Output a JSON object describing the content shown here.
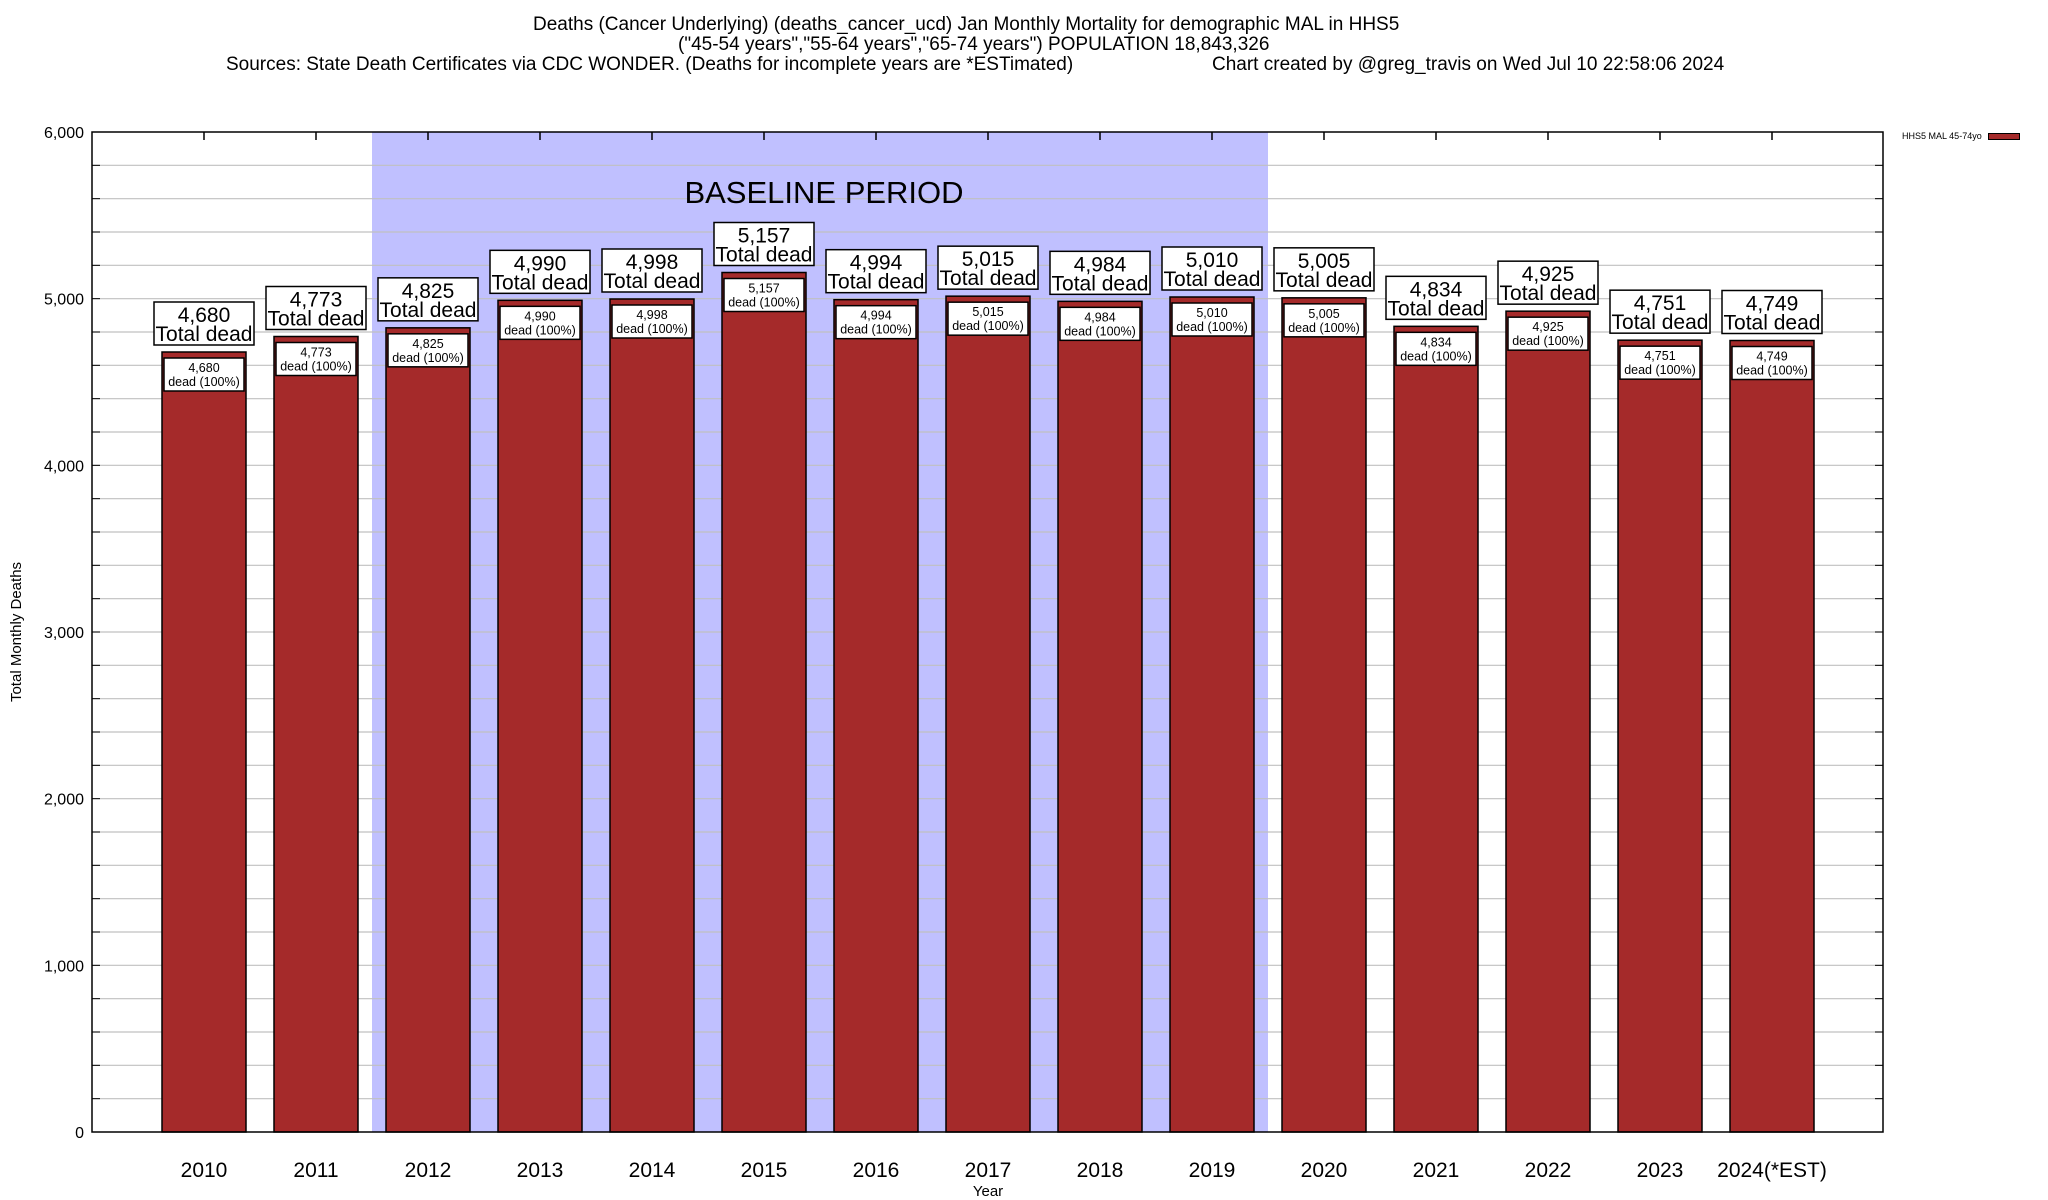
{
  "header": {
    "line1": "Deaths (Cancer Underlying) (deaths_cancer_ucd) Jan Monthly Mortality for demographic MAL in HHS5",
    "line2": "(\"45-54 years\",\"55-64 years\",\"65-74 years\") POPULATION 18,843,326",
    "line3_left": "Sources: State Death Certificates via CDC WONDER. (Deaths for incomplete years are *ESTimated)",
    "line3_right": "Chart created by @greg_travis on Wed Jul 10 22:58:06 2024"
  },
  "legend": {
    "label": "HHS5 MAL 45-74yo",
    "color": "#a52a2a"
  },
  "chart_data": {
    "type": "bar",
    "title": "Deaths (Cancer Underlying) (deaths_cancer_ucd) Jan Monthly Mortality for demographic MAL in HHS5",
    "xlabel": "Year",
    "ylabel": "Total Monthly Deaths",
    "ylim": [
      0,
      6000
    ],
    "yticks": [
      0,
      1000,
      2000,
      3000,
      4000,
      5000,
      6000
    ],
    "ytick_labels": [
      "0",
      "1,000",
      "2,000",
      "3,000",
      "4,000",
      "5,000",
      "6,000"
    ],
    "minor_grid_step": 200,
    "grid": true,
    "legend_position": "top-right",
    "categories": [
      "2010",
      "2011",
      "2012",
      "2013",
      "2014",
      "2015",
      "2016",
      "2017",
      "2018",
      "2019",
      "2020",
      "2021",
      "2022",
      "2023",
      "2024(*EST)"
    ],
    "series": [
      {
        "name": "HHS5 MAL 45-74yo",
        "color": "#a52a2a",
        "values": [
          4680,
          4773,
          4825,
          4990,
          4998,
          5157,
          4994,
          5015,
          4984,
          5010,
          5005,
          4834,
          4925,
          4751,
          4749
        ]
      }
    ],
    "total_labels": [
      "4,680",
      "4,773",
      "4,825",
      "4,990",
      "4,998",
      "5,157",
      "4,994",
      "5,015",
      "4,984",
      "5,010",
      "5,005",
      "4,834",
      "4,925",
      "4,751",
      "4,749"
    ],
    "total_label_suffix": "Total dead",
    "inner_label_suffix": "dead (100%)",
    "annotation": {
      "text": "BASELINE PERIOD",
      "start_category": "2012",
      "end_category": "2019",
      "color": "#c0c0ff"
    }
  }
}
